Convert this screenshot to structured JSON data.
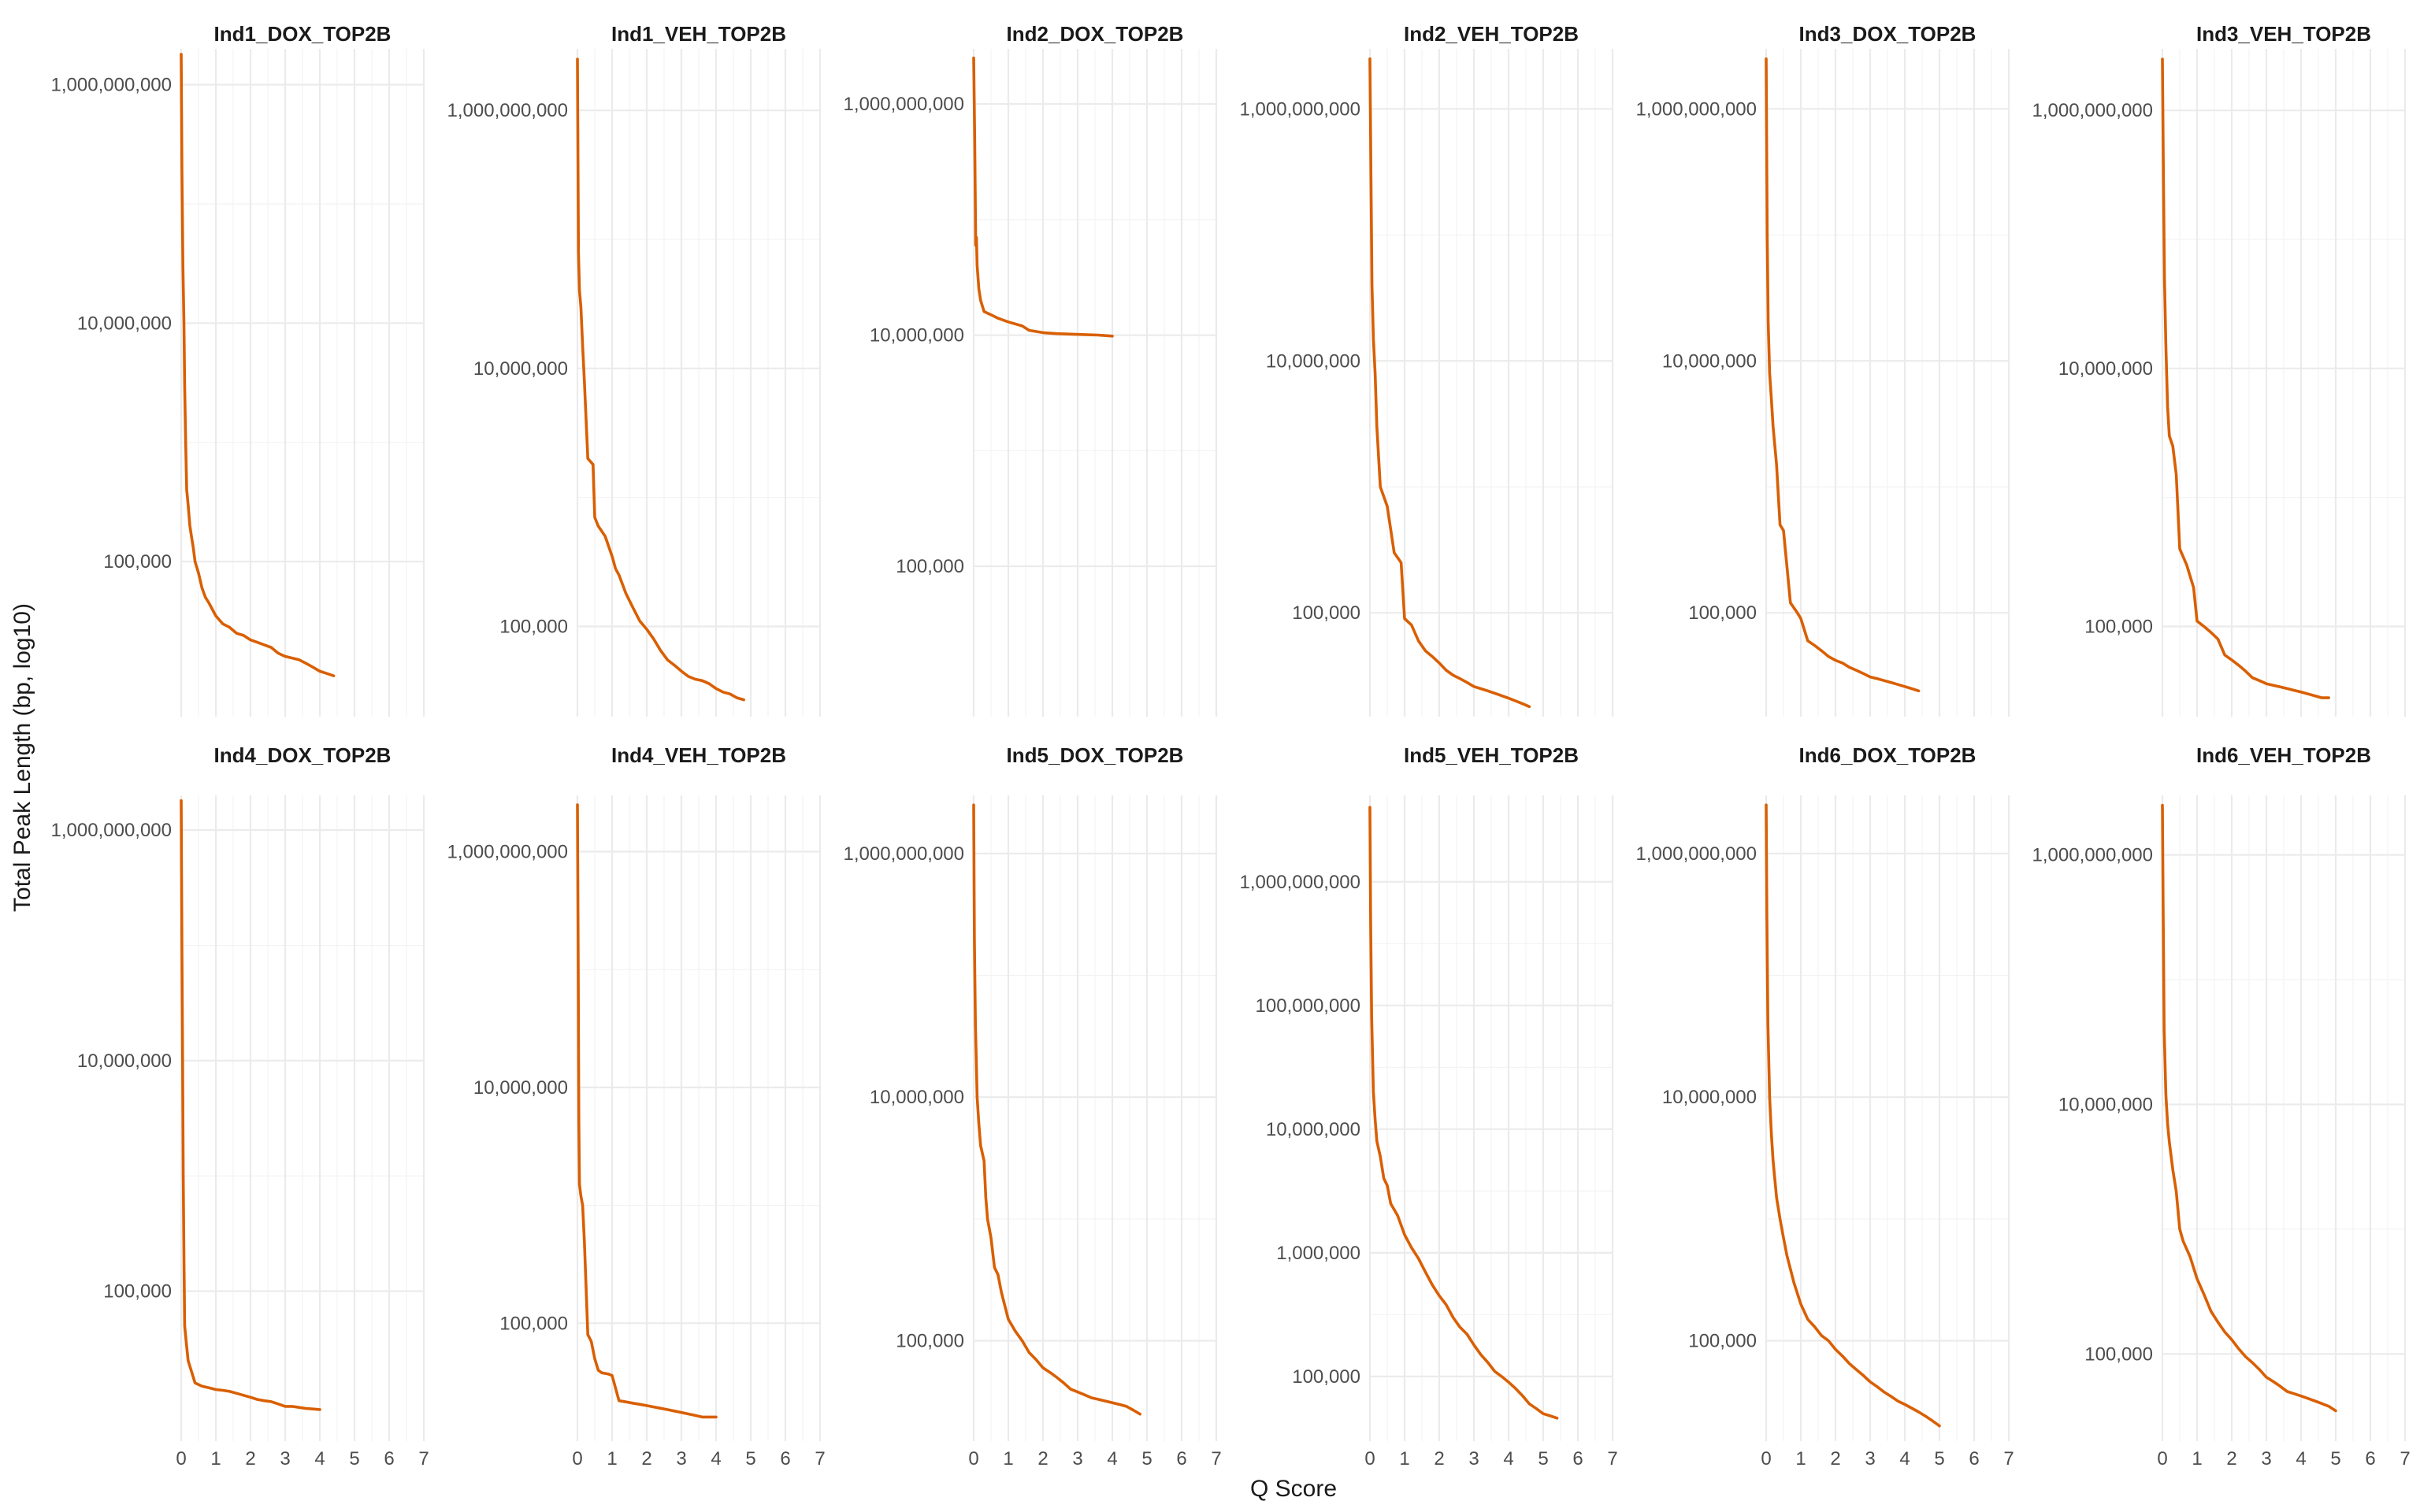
{
  "chart_data": {
    "type": "line",
    "layout": "facet-grid",
    "xlabel": "Q Score",
    "ylabel": "Total Peak Length (bp, log10)",
    "y_scale": "log10",
    "grid": true,
    "line_color": "#d95f02",
    "x_ticks": [
      0,
      1,
      2,
      3,
      4,
      5,
      6,
      7
    ],
    "x_tick_labels": [
      "0",
      "1",
      "2",
      "3",
      "4",
      "5",
      "6",
      "7"
    ],
    "xlim": [
      0,
      7
    ],
    "panels": [
      {
        "title": "Ind1_DOX_TOP2B",
        "ylim": [
          5000,
          2000000000
        ],
        "y_ticks": [
          100000,
          10000000,
          1000000000
        ],
        "y_tick_labels": [
          "100,000",
          "10,000,000",
          "1,000,000,000"
        ],
        "x": [
          0,
          0.02,
          0.05,
          0.08,
          0.1,
          0.13,
          0.16,
          0.2,
          0.25,
          0.3,
          0.35,
          0.4,
          0.5,
          0.6,
          0.7,
          0.8,
          1.0,
          1.2,
          1.4,
          1.6,
          1.8,
          2.0,
          2.2,
          2.4,
          2.6,
          2.8,
          3.0,
          3.2,
          3.4,
          3.6,
          3.8,
          4.0,
          4.2,
          4.4
        ],
        "y": [
          1800000000,
          200000000,
          30000000,
          10000000,
          3000000,
          1000000,
          400000,
          300000,
          200000,
          160000,
          130000,
          100000,
          80000,
          60000,
          50000,
          45000,
          35000,
          30000,
          28000,
          25000,
          24000,
          22000,
          21000,
          20000,
          19000,
          17000,
          16000,
          15500,
          15000,
          14000,
          13000,
          12000,
          11500,
          11000
        ]
      },
      {
        "title": "Ind1_VEH_TOP2B",
        "ylim": [
          20000,
          3000000000
        ],
        "y_ticks": [
          100000,
          10000000,
          1000000000
        ],
        "y_tick_labels": [
          "100,000",
          "10,000,000",
          "1,000,000,000"
        ],
        "x": [
          0,
          0.03,
          0.06,
          0.1,
          0.15,
          0.2,
          0.3,
          0.45,
          0.5,
          0.6,
          0.8,
          1.0,
          1.1,
          1.2,
          1.4,
          1.6,
          1.8,
          2.0,
          2.2,
          2.4,
          2.6,
          2.8,
          3.0,
          3.2,
          3.4,
          3.6,
          3.8,
          4.0,
          4.2,
          4.4,
          4.6,
          4.8
        ],
        "y": [
          2500000000,
          80000000,
          40000000,
          30000000,
          15000000,
          8000000,
          2000000,
          1800000,
          700000,
          600000,
          500000,
          350000,
          280000,
          250000,
          180000,
          140000,
          110000,
          95000,
          80000,
          65000,
          55000,
          50000,
          45000,
          41000,
          39000,
          38000,
          36000,
          33000,
          31000,
          30000,
          28000,
          27000
        ]
      },
      {
        "title": "Ind2_DOX_TOP2B",
        "ylim": [
          5000,
          3000000000
        ],
        "y_ticks": [
          100000,
          10000000,
          1000000000
        ],
        "y_tick_labels": [
          "100,000",
          "10,000,000",
          "1,000,000,000"
        ],
        "x": [
          0,
          0.03,
          0.06,
          0.08,
          0.1,
          0.15,
          0.2,
          0.3,
          0.5,
          0.7,
          1.0,
          1.4,
          1.6,
          2.0,
          2.4,
          2.8,
          3.2,
          3.6,
          4.0
        ],
        "y": [
          2500000000,
          500000000,
          60000000,
          70000000,
          40000000,
          25000000,
          20000000,
          16000000,
          15000000,
          14000000,
          13000000,
          12000000,
          11000000,
          10500000,
          10300000,
          10200000,
          10100000,
          10000000,
          9800000
        ]
      },
      {
        "title": "Ind2_VEH_TOP2B",
        "ylim": [
          15000,
          3000000000
        ],
        "y_ticks": [
          100000,
          10000000,
          1000000000
        ],
        "y_tick_labels": [
          "100,000",
          "10,000,000",
          "1,000,000,000"
        ],
        "x": [
          0,
          0.03,
          0.06,
          0.1,
          0.15,
          0.2,
          0.3,
          0.5,
          0.7,
          0.9,
          1.0,
          1.2,
          1.4,
          1.6,
          1.8,
          2.0,
          2.2,
          2.4,
          2.6,
          2.8,
          3.0,
          3.2,
          3.4,
          3.6,
          3.8,
          4.0,
          4.2,
          4.4,
          4.6
        ],
        "y": [
          2500000000,
          300000000,
          40000000,
          15000000,
          8000000,
          3000000,
          1000000,
          700000,
          300000,
          250000,
          90000,
          80000,
          60000,
          50000,
          45000,
          40000,
          35000,
          32000,
          30000,
          28000,
          26000,
          25000,
          24000,
          23000,
          22000,
          21000,
          20000,
          19000,
          18000
        ]
      },
      {
        "title": "Ind3_DOX_TOP2B",
        "ylim": [
          15000,
          3000000000
        ],
        "y_ticks": [
          100000,
          10000000,
          1000000000
        ],
        "y_tick_labels": [
          "100,000",
          "10,000,000",
          "1,000,000,000"
        ],
        "x": [
          0,
          0.03,
          0.06,
          0.1,
          0.15,
          0.2,
          0.3,
          0.4,
          0.5,
          0.7,
          0.9,
          1.0,
          1.2,
          1.4,
          1.6,
          1.8,
          2.0,
          2.2,
          2.4,
          2.6,
          2.8,
          3.0,
          3.2,
          3.4,
          3.6,
          3.8,
          4.0,
          4.2,
          4.4
        ],
        "y": [
          2500000000,
          100000000,
          20000000,
          8000000,
          5000000,
          3000000,
          1500000,
          500000,
          450000,
          120000,
          100000,
          90000,
          60000,
          55000,
          50000,
          45000,
          42000,
          40000,
          37000,
          35000,
          33000,
          31000,
          30000,
          29000,
          28000,
          27000,
          26000,
          25000,
          24000
        ]
      },
      {
        "title": "Ind3_VEH_TOP2B",
        "ylim": [
          20000,
          3000000000
        ],
        "y_ticks": [
          100000,
          10000000,
          1000000000
        ],
        "y_tick_labels": [
          "100,000",
          "10,000,000",
          "1,000,000,000"
        ],
        "x": [
          0,
          0.03,
          0.06,
          0.1,
          0.15,
          0.2,
          0.3,
          0.4,
          0.5,
          0.7,
          0.9,
          1.0,
          1.2,
          1.4,
          1.6,
          1.8,
          2.0,
          2.2,
          2.4,
          2.6,
          2.8,
          3.0,
          3.2,
          3.4,
          3.6,
          3.8,
          4.0,
          4.2,
          4.4,
          4.6,
          4.8
        ],
        "y": [
          2500000000,
          300000000,
          50000000,
          15000000,
          5000000,
          3000000,
          2500000,
          1500000,
          400000,
          300000,
          200000,
          110000,
          100000,
          90000,
          80000,
          60000,
          55000,
          50000,
          45000,
          40000,
          38000,
          36000,
          35000,
          34000,
          33000,
          32000,
          31000,
          30000,
          29000,
          28000,
          28000
        ]
      },
      {
        "title": "Ind4_DOX_TOP2B",
        "ylim": [
          5000,
          2000000000
        ],
        "y_ticks": [
          100000,
          10000000,
          1000000000
        ],
        "y_tick_labels": [
          "100,000",
          "10,000,000",
          "1,000,000,000"
        ],
        "x": [
          0,
          0.02,
          0.04,
          0.06,
          0.08,
          0.1,
          0.15,
          0.2,
          0.3,
          0.4,
          0.6,
          0.8,
          1.0,
          1.2,
          1.4,
          1.6,
          1.8,
          2.0,
          2.2,
          2.4,
          2.6,
          2.8,
          3.0,
          3.2,
          3.4,
          3.6,
          3.8,
          4.0
        ],
        "y": [
          1800000000,
          100000000,
          10000000,
          1000000,
          200000,
          50000,
          35000,
          25000,
          20000,
          16000,
          15000,
          14500,
          14000,
          13800,
          13500,
          13000,
          12500,
          12000,
          11500,
          11200,
          11000,
          10500,
          10000,
          10000,
          9800,
          9600,
          9500,
          9400
        ]
      },
      {
        "title": "Ind4_VEH_TOP2B",
        "ylim": [
          10000,
          3000000000
        ],
        "y_ticks": [
          100000,
          10000000,
          1000000000
        ],
        "y_tick_labels": [
          "100,000",
          "10,000,000",
          "1,000,000,000"
        ],
        "x": [
          0,
          0.02,
          0.04,
          0.06,
          0.1,
          0.15,
          0.2,
          0.3,
          0.4,
          0.5,
          0.6,
          0.7,
          0.9,
          1.0,
          1.2,
          1.4,
          1.6,
          1.8,
          2.0,
          2.2,
          2.4,
          2.6,
          2.8,
          3.0,
          3.2,
          3.4,
          3.6,
          3.8,
          4.0
        ],
        "y": [
          2500000000,
          150000000,
          5000000,
          1500000,
          1200000,
          1000000,
          500000,
          80000,
          70000,
          50000,
          40000,
          38000,
          37000,
          36000,
          22000,
          21500,
          21000,
          20500,
          20000,
          19500,
          19000,
          18500,
          18000,
          17500,
          17000,
          16500,
          16000,
          16000,
          16000
        ]
      },
      {
        "title": "Ind5_DOX_TOP2B",
        "ylim": [
          15000,
          3000000000
        ],
        "y_ticks": [
          100000,
          10000000,
          1000000000
        ],
        "y_tick_labels": [
          "100,000",
          "10,000,000",
          "1,000,000,000"
        ],
        "x": [
          0,
          0.02,
          0.05,
          0.1,
          0.15,
          0.2,
          0.3,
          0.35,
          0.4,
          0.5,
          0.6,
          0.7,
          0.8,
          1.0,
          1.2,
          1.4,
          1.6,
          1.8,
          2.0,
          2.2,
          2.4,
          2.6,
          2.8,
          3.0,
          3.2,
          3.4,
          3.6,
          3.8,
          4.0,
          4.2,
          4.4,
          4.6,
          4.8
        ],
        "y": [
          2500000000,
          200000000,
          40000000,
          10000000,
          6000000,
          4000000,
          3000000,
          1500000,
          1000000,
          700000,
          400000,
          350000,
          250000,
          150000,
          120000,
          100000,
          80000,
          70000,
          60000,
          55000,
          50000,
          45000,
          40000,
          38000,
          36000,
          34000,
          33000,
          32000,
          31000,
          30000,
          29000,
          27000,
          25000
        ]
      },
      {
        "title": "Ind5_VEH_TOP2B",
        "ylim": [
          30000,
          5000000000
        ],
        "y_ticks": [
          100000,
          1000000,
          10000000,
          100000000,
          1000000000
        ],
        "y_tick_labels": [
          "100,000",
          "1,000,000",
          "10,000,000",
          "100,000,000",
          "1,000,000,000"
        ],
        "x": [
          0,
          0.02,
          0.05,
          0.1,
          0.15,
          0.2,
          0.3,
          0.4,
          0.5,
          0.6,
          0.8,
          1.0,
          1.2,
          1.4,
          1.6,
          1.8,
          2.0,
          2.2,
          2.4,
          2.6,
          2.8,
          3.0,
          3.2,
          3.4,
          3.6,
          3.8,
          4.0,
          4.2,
          4.4,
          4.6,
          4.8,
          5.0,
          5.2,
          5.4
        ],
        "y": [
          4000000000,
          500000000,
          80000000,
          20000000,
          12000000,
          8000000,
          6000000,
          4000000,
          3500000,
          2500000,
          2000000,
          1400000,
          1100000,
          900000,
          700000,
          550000,
          450000,
          380000,
          300000,
          250000,
          220000,
          180000,
          150000,
          130000,
          110000,
          100000,
          90000,
          80000,
          70000,
          60000,
          55000,
          50000,
          48000,
          46000
        ]
      },
      {
        "title": "Ind6_DOX_TOP2B",
        "ylim": [
          15000,
          3000000000
        ],
        "y_ticks": [
          100000,
          10000000,
          1000000000
        ],
        "y_tick_labels": [
          "100,000",
          "10,000,000",
          "1,000,000,000"
        ],
        "x": [
          0,
          0.02,
          0.05,
          0.1,
          0.15,
          0.2,
          0.3,
          0.4,
          0.5,
          0.6,
          0.8,
          1.0,
          1.2,
          1.4,
          1.6,
          1.8,
          2.0,
          2.2,
          2.4,
          2.6,
          2.8,
          3.0,
          3.2,
          3.4,
          3.6,
          3.8,
          4.0,
          4.2,
          4.4,
          4.6,
          4.8,
          5.0
        ],
        "y": [
          2500000000,
          300000000,
          40000000,
          10000000,
          5000000,
          3000000,
          1500000,
          1000000,
          700000,
          500000,
          300000,
          200000,
          150000,
          130000,
          110000,
          100000,
          85000,
          75000,
          65000,
          58000,
          52000,
          46000,
          42000,
          38000,
          35000,
          32000,
          30000,
          28000,
          26000,
          24000,
          22000,
          20000
        ]
      },
      {
        "title": "Ind6_VEH_TOP2B",
        "ylim": [
          20000,
          3000000000
        ],
        "y_ticks": [
          100000,
          10000000,
          1000000000
        ],
        "y_tick_labels": [
          "100,000",
          "10,000,000",
          "1,000,000,000"
        ],
        "x": [
          0,
          0.02,
          0.05,
          0.1,
          0.15,
          0.2,
          0.3,
          0.4,
          0.5,
          0.6,
          0.8,
          1.0,
          1.2,
          1.4,
          1.6,
          1.8,
          2.0,
          2.2,
          2.4,
          2.6,
          2.8,
          3.0,
          3.2,
          3.4,
          3.6,
          3.8,
          4.0,
          4.2,
          4.4,
          4.6,
          4.8,
          5.0
        ],
        "y": [
          2500000000,
          400000000,
          40000000,
          12000000,
          7000000,
          5000000,
          3000000,
          2000000,
          1000000,
          800000,
          600000,
          400000,
          300000,
          220000,
          180000,
          150000,
          130000,
          110000,
          95000,
          85000,
          75000,
          65000,
          60000,
          55000,
          50000,
          48000,
          46000,
          44000,
          42000,
          40000,
          38000,
          35000
        ]
      }
    ]
  }
}
